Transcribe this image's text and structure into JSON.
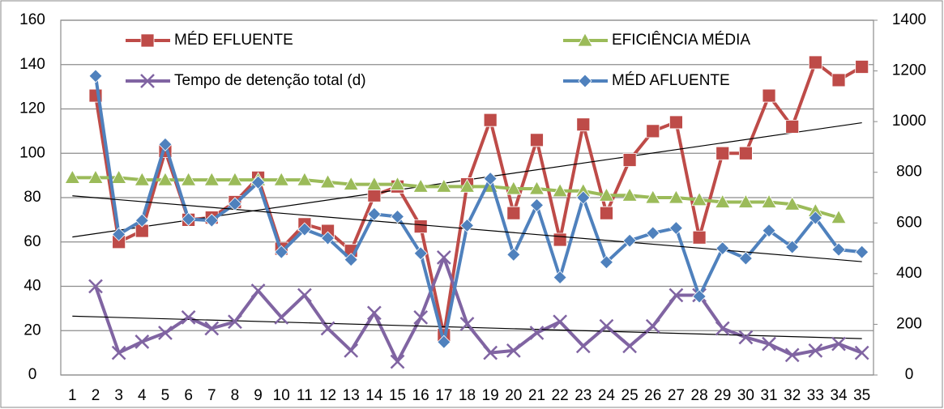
{
  "chart_data": {
    "type": "line",
    "categories": [
      1,
      2,
      3,
      4,
      5,
      6,
      7,
      8,
      9,
      10,
      11,
      12,
      13,
      14,
      15,
      16,
      17,
      18,
      19,
      20,
      21,
      22,
      23,
      24,
      25,
      26,
      27,
      28,
      29,
      30,
      31,
      32,
      33,
      34,
      35
    ],
    "series": [
      {
        "name": "MÉD EFLUENTE",
        "color": "#be4b48",
        "marker": "square",
        "trendline": true,
        "values": [
          null,
          126,
          60,
          65,
          101,
          70,
          71,
          78,
          89,
          57,
          68,
          65,
          56,
          81,
          85,
          67,
          18,
          86,
          115,
          73,
          106,
          61,
          113,
          73,
          97,
          110,
          114,
          62,
          100,
          100,
          126,
          112,
          141,
          133,
          139
        ]
      },
      {
        "name": "EFICIÊNCIA MÉDIA",
        "color": "#9bbb59",
        "marker": "triangle",
        "trendline": false,
        "values": [
          89,
          89,
          89,
          88,
          88,
          88,
          88,
          88,
          88,
          88,
          88,
          87,
          86,
          86,
          86,
          85,
          85,
          85,
          85,
          84,
          84,
          83,
          83,
          81,
          81,
          80,
          80,
          79,
          78,
          78,
          78,
          77,
          74,
          71,
          null
        ]
      },
      {
        "name": "Tempo de detenção total (d)",
        "color": "#8064a2",
        "marker": "x",
        "trendline": true,
        "values": [
          null,
          40,
          10,
          15,
          19,
          26,
          21,
          24,
          38,
          26,
          36,
          21,
          11,
          28,
          6,
          26,
          53,
          23,
          10,
          11,
          19,
          24,
          13,
          22,
          13,
          22,
          36,
          36,
          21,
          17,
          14,
          9,
          11,
          14,
          10
        ]
      },
      {
        "name": "MÉD AFLUENTE",
        "color": "#4f81bd",
        "marker": "diamond",
        "trendline": true,
        "axis": "y2",
        "values": [
          null,
          1180,
          555,
          610,
          910,
          615,
          610,
          675,
          760,
          485,
          575,
          540,
          455,
          635,
          625,
          480,
          130,
          590,
          775,
          475,
          670,
          385,
          700,
          445,
          530,
          560,
          580,
          310,
          500,
          460,
          570,
          505,
          620,
          495,
          485
        ]
      }
    ],
    "ylim": [
      0,
      160
    ],
    "yticks": [
      0,
      20,
      40,
      60,
      80,
      100,
      120,
      140,
      160
    ],
    "y2lim": [
      0,
      1400
    ],
    "y2ticks": [
      0,
      200,
      400,
      600,
      800,
      1000,
      1200,
      1400
    ],
    "grid": true,
    "legend": "top"
  }
}
